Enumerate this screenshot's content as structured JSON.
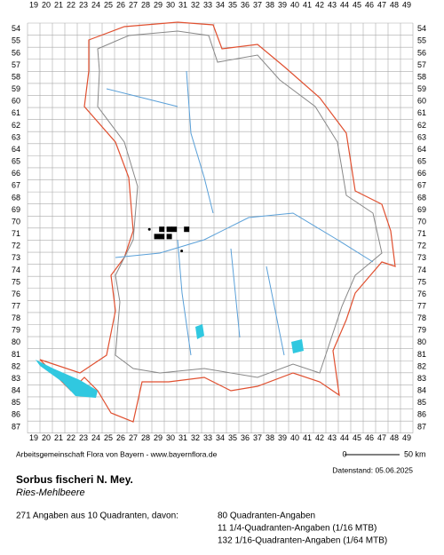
{
  "map": {
    "columns": [
      19,
      20,
      21,
      22,
      23,
      24,
      25,
      26,
      27,
      28,
      29,
      30,
      31,
      32,
      33,
      34,
      35,
      36,
      37,
      38,
      39,
      40,
      41,
      42,
      43,
      44,
      45,
      46,
      47,
      48,
      49
    ],
    "rows": [
      54,
      55,
      56,
      57,
      58,
      59,
      60,
      61,
      62,
      63,
      64,
      65,
      66,
      67,
      68,
      69,
      70,
      71,
      72,
      73,
      74,
      75,
      76,
      77,
      78,
      79,
      80,
      81,
      82,
      83,
      84,
      85,
      86,
      87
    ],
    "quadrants": [
      {
        "col": 29.3,
        "row": 70.6
      },
      {
        "col": 29.9,
        "row": 70.6
      },
      {
        "col": 30.3,
        "row": 70.6
      },
      {
        "col": 31.3,
        "row": 70.6
      },
      {
        "col": 28.9,
        "row": 71.2
      },
      {
        "col": 29.3,
        "row": 71.2
      },
      {
        "col": 29.9,
        "row": 71.2
      }
    ],
    "points": [
      {
        "col": 28.3,
        "row": 70.6
      },
      {
        "col": 30.9,
        "row": 72.4
      }
    ],
    "credit": "Arbeitsgemeinschaft Flora von Bayern - www.bayernflora.de",
    "scale_start": "0",
    "scale_end": "50 km",
    "date": "Datenstand: 05.06.2025"
  },
  "species": {
    "name": "Sorbus fischeri N. Mey.",
    "common_name": "Ries-Mehlbeere"
  },
  "summary": {
    "total": "271 Angaben aus 10 Quadranten, davon:",
    "lines": [
      "80 Quadranten-Angaben",
      "11 1/4-Quadranten-Angaben (1/16 MTB)",
      "132 1/16-Quadranten-Angaben (1/64 MTB)"
    ]
  }
}
